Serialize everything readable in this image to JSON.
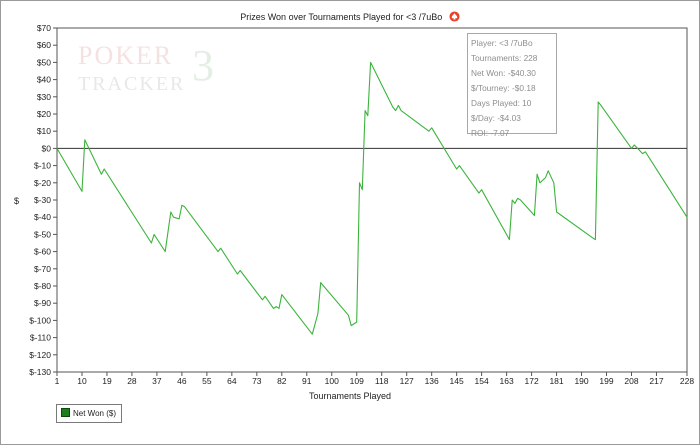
{
  "title": "Prizes Won over Tournaments Played for <3 /7uBo",
  "watermark": {
    "line1": "POKER",
    "line2": "TRACKER",
    "digit": "3"
  },
  "stats": {
    "player": "Player: <3 /7uBo",
    "tournaments": "Tournaments: 228",
    "net_won": "Net Won: -$40.30",
    "per_tourney": "$/Tourney: -$0.18",
    "days_played": "Days Played: 10",
    "per_day": "$/Day: -$4.03",
    "roi": "ROI: -7.07"
  },
  "colors": {
    "line": "#3cb43c",
    "zero_line": "#333333",
    "suit": "#e8442c"
  },
  "chart_data": {
    "type": "line",
    "title": "Prizes Won over Tournaments Played for <3 /7uBo",
    "xlabel": "Tournaments Played",
    "ylabel": "$",
    "xlim": [
      1,
      228
    ],
    "ylim": [
      -130,
      70
    ],
    "grid": false,
    "legend_position": "bottom-left",
    "x_ticks": [
      1,
      10,
      19,
      28,
      37,
      46,
      55,
      64,
      73,
      82,
      91,
      100,
      109,
      118,
      127,
      136,
      145,
      154,
      163,
      172,
      181,
      190,
      199,
      208,
      217,
      228
    ],
    "y_ticks": [
      70,
      60,
      50,
      40,
      30,
      20,
      10,
      0,
      -10,
      -20,
      -30,
      -40,
      -50,
      -60,
      -70,
      -80,
      -90,
      -100,
      -110,
      -120,
      -130
    ],
    "y_tick_labels": [
      "$70",
      "$60",
      "$50",
      "$40",
      "$30",
      "$20",
      "$10",
      "$0",
      "$-10",
      "$-20",
      "$-30",
      "$-40",
      "$-50",
      "$-60",
      "$-70",
      "$-80",
      "$-90",
      "$-100",
      "$-110",
      "$-120",
      "$-130"
    ],
    "series": [
      {
        "name": "Net Won ($)",
        "x": [
          1,
          10,
          11,
          17,
          18,
          35,
          36,
          38,
          40,
          42,
          43,
          45,
          46,
          47,
          59,
          60,
          66,
          67,
          75,
          76,
          79,
          80,
          81,
          82,
          93,
          94,
          95,
          96,
          106,
          107,
          109,
          110,
          111,
          112,
          113,
          114,
          122,
          123,
          124,
          125,
          135,
          136,
          145,
          146,
          153,
          154,
          164,
          165,
          166,
          167,
          168,
          173,
          174,
          175,
          177,
          178,
          180,
          181,
          194,
          195,
          196,
          197,
          208,
          209,
          212,
          213,
          228
        ],
        "y": [
          0,
          -25,
          5,
          -15,
          -12,
          -55,
          -50,
          -55,
          -60,
          -37,
          -40,
          -41,
          -33,
          -34,
          -60,
          -58,
          -73,
          -71,
          -88,
          -86,
          -93,
          -92,
          -93,
          -85,
          -108,
          -102,
          -96,
          -78,
          -97,
          -103,
          -101,
          -20,
          -24,
          22,
          19,
          50,
          24,
          22,
          25,
          22,
          10,
          12,
          -12,
          -10,
          -26,
          -24,
          -53,
          -30,
          -32,
          -29,
          -30,
          -39,
          -15,
          -20,
          -17,
          -13,
          -20,
          -37,
          -52,
          -53,
          27,
          25,
          0,
          2,
          -3,
          -2,
          -40
        ]
      }
    ]
  }
}
